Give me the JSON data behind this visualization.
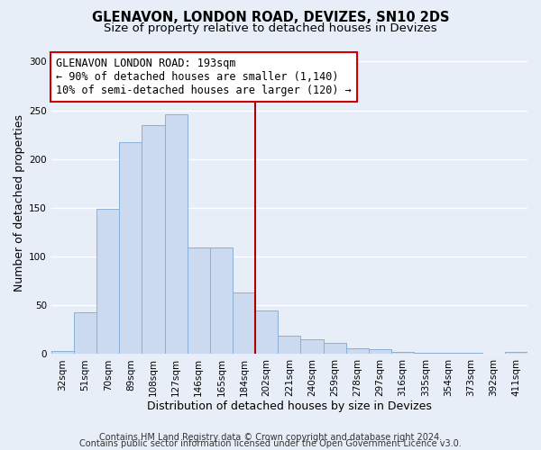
{
  "title": "GLENAVON, LONDON ROAD, DEVIZES, SN10 2DS",
  "subtitle": "Size of property relative to detached houses in Devizes",
  "xlabel": "Distribution of detached houses by size in Devizes",
  "ylabel": "Number of detached properties",
  "bar_color": "#ccdaf0",
  "bar_edge_color": "#8ab0d8",
  "categories": [
    "32sqm",
    "51sqm",
    "70sqm",
    "89sqm",
    "108sqm",
    "127sqm",
    "146sqm",
    "165sqm",
    "184sqm",
    "202sqm",
    "221sqm",
    "240sqm",
    "259sqm",
    "278sqm",
    "297sqm",
    "316sqm",
    "335sqm",
    "354sqm",
    "373sqm",
    "392sqm",
    "411sqm"
  ],
  "values": [
    3,
    43,
    149,
    217,
    235,
    246,
    109,
    109,
    63,
    45,
    19,
    15,
    11,
    6,
    5,
    2,
    1,
    1,
    1,
    0,
    2
  ],
  "ylim": [
    0,
    310
  ],
  "yticks": [
    0,
    50,
    100,
    150,
    200,
    250,
    300
  ],
  "vline_index": 8.5,
  "vline_color": "#aa0000",
  "annotation_line1": "GLENAVON LONDON ROAD: 193sqm",
  "annotation_line2": "← 90% of detached houses are smaller (1,140)",
  "annotation_line3": "10% of semi-detached houses are larger (120) →",
  "annotation_box_color": "#ffffff",
  "annotation_box_edge": "#cc0000",
  "footer1": "Contains HM Land Registry data © Crown copyright and database right 2024.",
  "footer2": "Contains public sector information licensed under the Open Government Licence v3.0.",
  "background_color": "#e8eef8",
  "grid_color": "#ffffff",
  "title_fontsize": 10.5,
  "subtitle_fontsize": 9.5,
  "axis_label_fontsize": 9,
  "tick_fontsize": 7.5,
  "annotation_fontsize": 8.5,
  "footer_fontsize": 7
}
